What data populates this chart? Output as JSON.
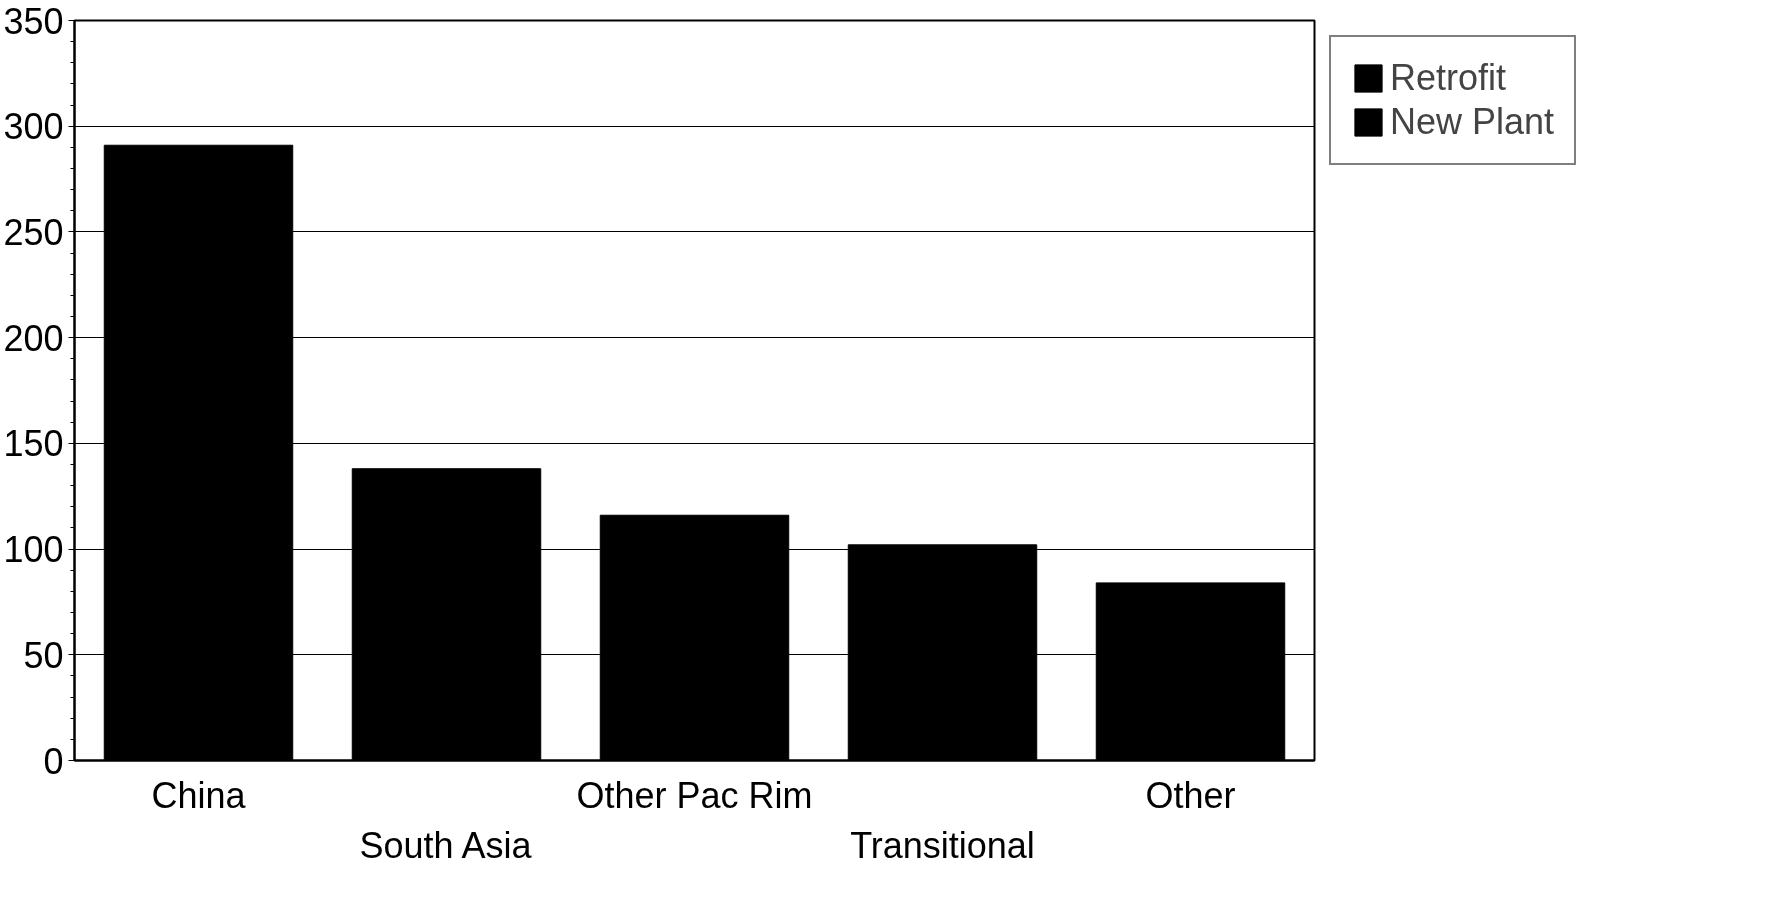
{
  "chart_data": {
    "type": "bar",
    "categories": [
      "China",
      "South Asia",
      "Other Pac Rim",
      "Transitional",
      "Other"
    ],
    "series": [
      {
        "name": "Retrofit",
        "color": "#000000",
        "values": [
          0,
          0,
          0,
          0,
          0
        ]
      },
      {
        "name": "New Plant",
        "color": "#000000",
        "values": [
          291,
          138,
          116,
          102,
          84
        ]
      }
    ],
    "ylim": [
      0,
      350
    ],
    "yticks": [
      0,
      50,
      100,
      150,
      200,
      250,
      300,
      350
    ],
    "grid": "y",
    "legend": "top right"
  }
}
